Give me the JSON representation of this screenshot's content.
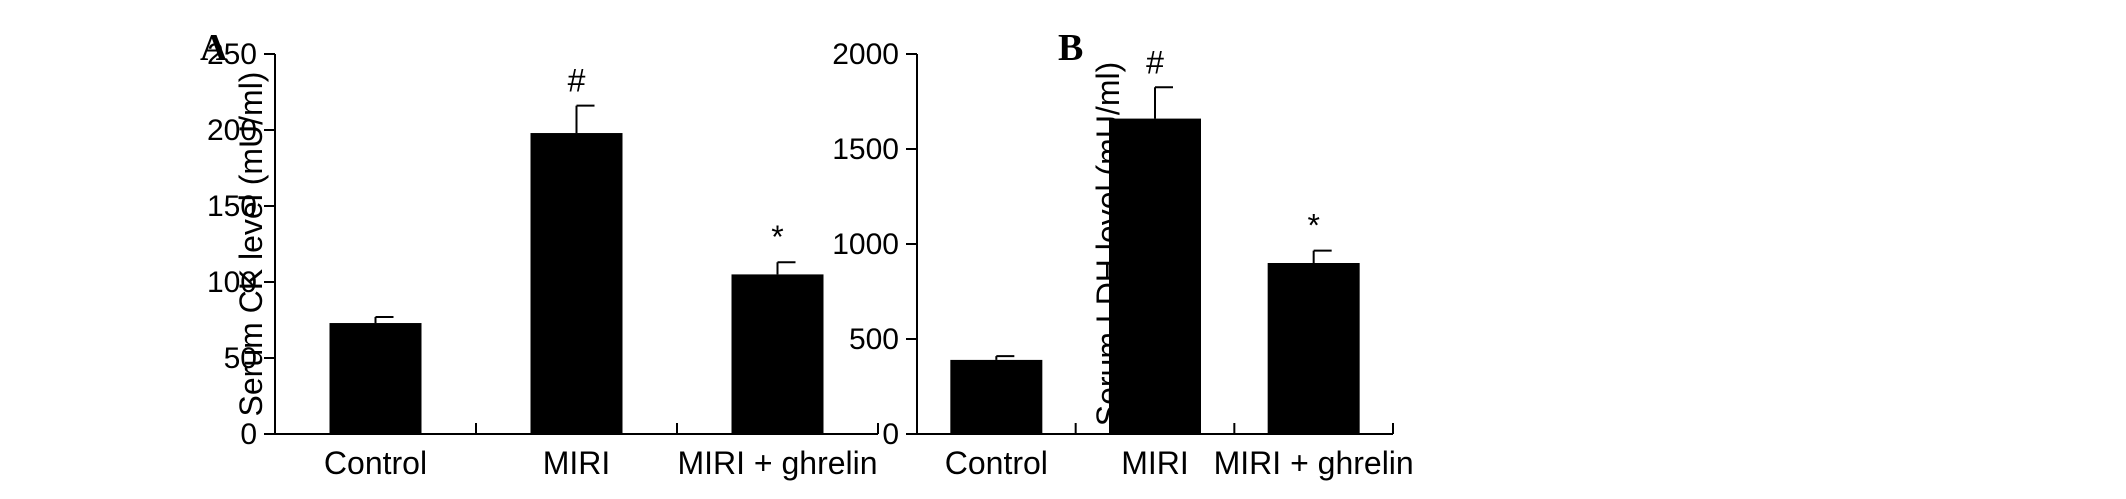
{
  "chart_data": [
    {
      "panel": "A",
      "type": "bar",
      "categories": [
        "Control",
        "MIRI",
        "MIRI + ghrelin"
      ],
      "values": [
        73,
        198,
        105
      ],
      "errors": [
        4,
        18,
        8
      ],
      "annotations": [
        "",
        "#",
        "*"
      ],
      "ylabel": "Serum CK level (mU/ml)",
      "ylim": [
        0,
        250
      ],
      "yticks": [
        0,
        50,
        100,
        150,
        200,
        250
      ],
      "ytick_labels": [
        "0",
        "50",
        "100",
        "150",
        "200",
        "250"
      ],
      "bar_color": "#000000",
      "grid": false,
      "legend": "none"
    },
    {
      "panel": "B",
      "type": "bar",
      "categories": [
        "Control",
        "MIRI",
        "MIRI + ghrelin"
      ],
      "values": [
        390,
        1660,
        900
      ],
      "errors": [
        20,
        165,
        65
      ],
      "annotations": [
        "",
        "#",
        "*"
      ],
      "ylabel": "Serum LDH level (mU/ml)",
      "ylim": [
        0,
        2000
      ],
      "yticks": [
        0,
        500,
        1000,
        1500,
        2000
      ],
      "ytick_labels": [
        "0",
        "500",
        "1000",
        "1500",
        "2000"
      ],
      "bar_color": "#000000",
      "grid": false,
      "legend": "none"
    }
  ]
}
